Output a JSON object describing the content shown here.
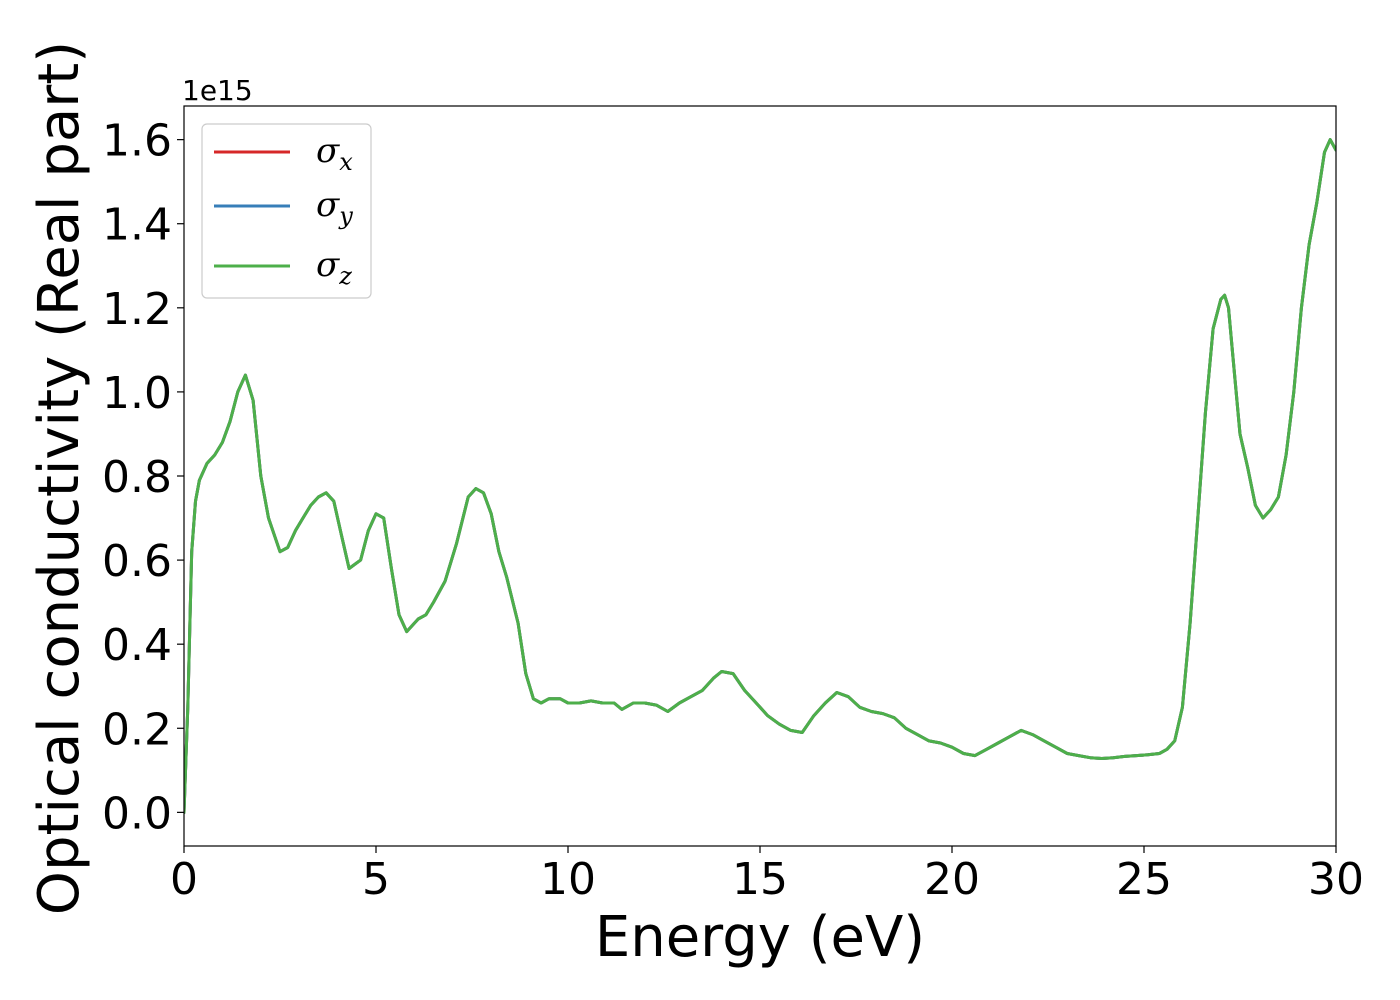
{
  "chart_data": {
    "type": "line",
    "xlabel": "Energy (eV)",
    "ylabel": "Optical conductivity (Real part)",
    "y_offset_text": "1e15",
    "xlim": [
      0,
      30
    ],
    "ylim": [
      -0.08,
      1.68
    ],
    "x_ticks": [
      0,
      5,
      10,
      15,
      20,
      25,
      30
    ],
    "x_tick_labels": [
      "0",
      "5",
      "10",
      "15",
      "20",
      "25",
      "30"
    ],
    "y_ticks": [
      0.0,
      0.2,
      0.4,
      0.6,
      0.8,
      1.0,
      1.2,
      1.4,
      1.6
    ],
    "y_tick_labels": [
      "0.0",
      "0.2",
      "0.4",
      "0.6",
      "0.8",
      "1.0",
      "1.2",
      "1.4",
      "1.6"
    ],
    "grid": false,
    "legend_position": "top-left",
    "x": [
      0,
      0.1,
      0.2,
      0.3,
      0.4,
      0.6,
      0.8,
      1.0,
      1.2,
      1.4,
      1.6,
      1.8,
      2.0,
      2.2,
      2.5,
      2.7,
      2.9,
      3.1,
      3.3,
      3.5,
      3.7,
      3.9,
      4.1,
      4.3,
      4.6,
      4.8,
      5.0,
      5.2,
      5.4,
      5.6,
      5.8,
      6.1,
      6.3,
      6.5,
      6.8,
      7.1,
      7.4,
      7.6,
      7.8,
      8.0,
      8.2,
      8.4,
      8.7,
      8.9,
      9.1,
      9.3,
      9.5,
      9.8,
      10.0,
      10.3,
      10.6,
      10.9,
      11.2,
      11.4,
      11.7,
      12.0,
      12.3,
      12.6,
      12.9,
      13.2,
      13.5,
      13.8,
      14.0,
      14.3,
      14.6,
      14.9,
      15.2,
      15.5,
      15.8,
      16.1,
      16.4,
      16.7,
      17.0,
      17.3,
      17.6,
      17.9,
      18.2,
      18.5,
      18.8,
      19.1,
      19.4,
      19.7,
      20.0,
      20.3,
      20.6,
      20.9,
      21.2,
      21.5,
      21.8,
      22.1,
      22.4,
      22.7,
      23.0,
      23.3,
      23.6,
      23.9,
      24.2,
      24.5,
      24.8,
      25.1,
      25.4,
      25.6,
      25.8,
      26.0,
      26.2,
      26.4,
      26.6,
      26.8,
      27.0,
      27.1,
      27.2,
      27.3,
      27.5,
      27.7,
      27.9,
      28.1,
      28.3,
      28.5,
      28.7,
      28.9,
      29.1,
      29.3,
      29.5,
      29.7,
      29.85,
      30.0
    ],
    "series": [
      {
        "name": "σx",
        "color": "#d62728",
        "values": [
          0.0,
          0.25,
          0.62,
          0.74,
          0.79,
          0.83,
          0.85,
          0.88,
          0.93,
          1.0,
          1.04,
          0.98,
          0.8,
          0.7,
          0.62,
          0.63,
          0.67,
          0.7,
          0.73,
          0.75,
          0.76,
          0.74,
          0.66,
          0.58,
          0.6,
          0.67,
          0.71,
          0.7,
          0.58,
          0.47,
          0.43,
          0.46,
          0.47,
          0.5,
          0.55,
          0.64,
          0.75,
          0.77,
          0.76,
          0.71,
          0.62,
          0.56,
          0.45,
          0.33,
          0.27,
          0.26,
          0.27,
          0.27,
          0.26,
          0.26,
          0.265,
          0.26,
          0.26,
          0.245,
          0.26,
          0.26,
          0.255,
          0.24,
          0.26,
          0.275,
          0.29,
          0.32,
          0.335,
          0.33,
          0.29,
          0.26,
          0.23,
          0.21,
          0.195,
          0.19,
          0.23,
          0.26,
          0.285,
          0.275,
          0.25,
          0.24,
          0.235,
          0.225,
          0.2,
          0.185,
          0.17,
          0.165,
          0.155,
          0.14,
          0.135,
          0.15,
          0.165,
          0.18,
          0.195,
          0.185,
          0.17,
          0.155,
          0.14,
          0.135,
          0.13,
          0.128,
          0.13,
          0.133,
          0.135,
          0.137,
          0.14,
          0.15,
          0.17,
          0.25,
          0.45,
          0.7,
          0.95,
          1.15,
          1.22,
          1.23,
          1.2,
          1.1,
          0.9,
          0.82,
          0.73,
          0.7,
          0.72,
          0.75,
          0.85,
          1.0,
          1.2,
          1.35,
          1.45,
          1.57,
          1.6,
          1.575
        ]
      },
      {
        "name": "σy",
        "color": "#377eb8",
        "values": [
          0.0,
          0.25,
          0.62,
          0.74,
          0.79,
          0.83,
          0.85,
          0.88,
          0.93,
          1.0,
          1.04,
          0.98,
          0.8,
          0.7,
          0.62,
          0.63,
          0.67,
          0.7,
          0.73,
          0.75,
          0.76,
          0.74,
          0.66,
          0.58,
          0.6,
          0.67,
          0.71,
          0.7,
          0.58,
          0.47,
          0.43,
          0.46,
          0.47,
          0.5,
          0.55,
          0.64,
          0.75,
          0.77,
          0.76,
          0.71,
          0.62,
          0.56,
          0.45,
          0.33,
          0.27,
          0.26,
          0.27,
          0.27,
          0.26,
          0.26,
          0.265,
          0.26,
          0.26,
          0.245,
          0.26,
          0.26,
          0.255,
          0.24,
          0.26,
          0.275,
          0.29,
          0.32,
          0.335,
          0.33,
          0.29,
          0.26,
          0.23,
          0.21,
          0.195,
          0.19,
          0.23,
          0.26,
          0.285,
          0.275,
          0.25,
          0.24,
          0.235,
          0.225,
          0.2,
          0.185,
          0.17,
          0.165,
          0.155,
          0.14,
          0.135,
          0.15,
          0.165,
          0.18,
          0.195,
          0.185,
          0.17,
          0.155,
          0.14,
          0.135,
          0.13,
          0.128,
          0.13,
          0.133,
          0.135,
          0.137,
          0.14,
          0.15,
          0.17,
          0.25,
          0.45,
          0.7,
          0.95,
          1.15,
          1.22,
          1.23,
          1.2,
          1.1,
          0.9,
          0.82,
          0.73,
          0.7,
          0.72,
          0.75,
          0.85,
          1.0,
          1.2,
          1.35,
          1.45,
          1.57,
          1.6,
          1.575
        ]
      },
      {
        "name": "σz",
        "color": "#4daf4a",
        "values": [
          0.0,
          0.25,
          0.62,
          0.74,
          0.79,
          0.83,
          0.85,
          0.88,
          0.93,
          1.0,
          1.04,
          0.98,
          0.8,
          0.7,
          0.62,
          0.63,
          0.67,
          0.7,
          0.73,
          0.75,
          0.76,
          0.74,
          0.66,
          0.58,
          0.6,
          0.67,
          0.71,
          0.7,
          0.58,
          0.47,
          0.43,
          0.46,
          0.47,
          0.5,
          0.55,
          0.64,
          0.75,
          0.77,
          0.76,
          0.71,
          0.62,
          0.56,
          0.45,
          0.33,
          0.27,
          0.26,
          0.27,
          0.27,
          0.26,
          0.26,
          0.265,
          0.26,
          0.26,
          0.245,
          0.26,
          0.26,
          0.255,
          0.24,
          0.26,
          0.275,
          0.29,
          0.32,
          0.335,
          0.33,
          0.29,
          0.26,
          0.23,
          0.21,
          0.195,
          0.19,
          0.23,
          0.26,
          0.285,
          0.275,
          0.25,
          0.24,
          0.235,
          0.225,
          0.2,
          0.185,
          0.17,
          0.165,
          0.155,
          0.14,
          0.135,
          0.15,
          0.165,
          0.18,
          0.195,
          0.185,
          0.17,
          0.155,
          0.14,
          0.135,
          0.13,
          0.128,
          0.13,
          0.133,
          0.135,
          0.137,
          0.14,
          0.15,
          0.17,
          0.25,
          0.45,
          0.7,
          0.95,
          1.15,
          1.22,
          1.23,
          1.2,
          1.1,
          0.9,
          0.82,
          0.73,
          0.7,
          0.72,
          0.75,
          0.85,
          1.0,
          1.2,
          1.35,
          1.45,
          1.57,
          1.6,
          1.575
        ]
      }
    ],
    "legend": [
      {
        "symbol": "σ",
        "subscript": "x"
      },
      {
        "symbol": "σ",
        "subscript": "y"
      },
      {
        "symbol": "σ",
        "subscript": "z"
      }
    ]
  }
}
